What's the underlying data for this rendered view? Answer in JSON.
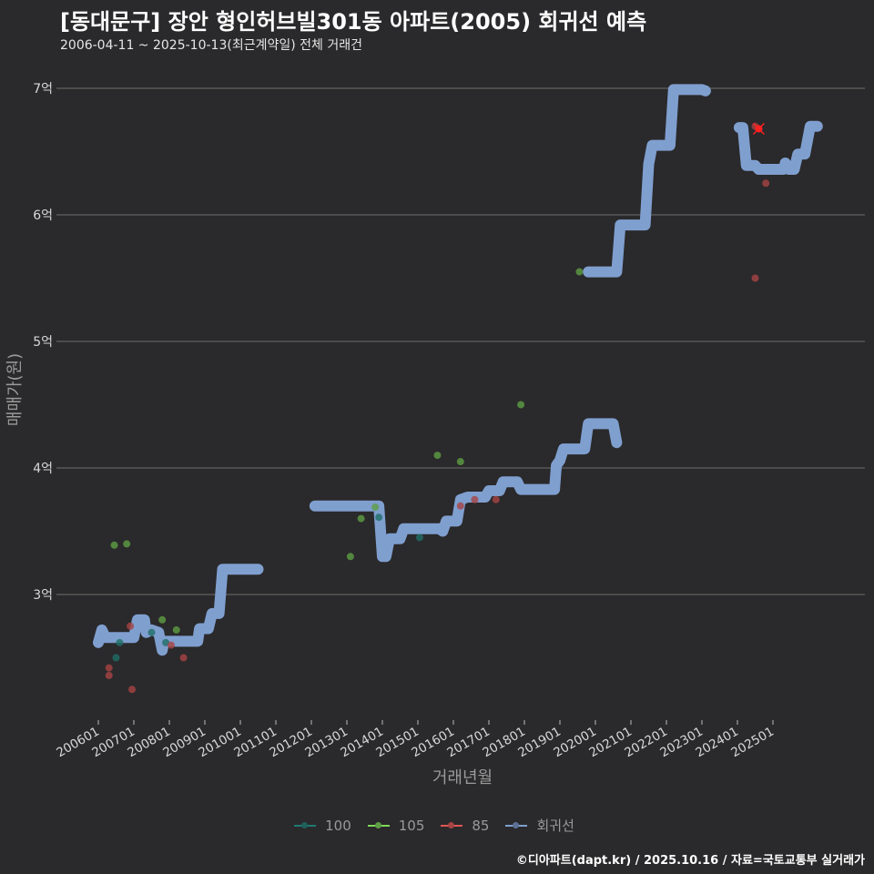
{
  "header": {
    "title": "[동대문구] 장안 형인허브빌301동 아파트(2005) 회귀선 예측",
    "subtitle": "2006-04-11 ~ 2025-10-13(최근계약일) 전체 거래건"
  },
  "caption": "©디아파트(dapt.kr) / 2025.10.16 / 자료=국토교통부 실거래가",
  "colors": {
    "background": "#2a292b",
    "grid": "#6e6e6e",
    "s100": "#1f7a72",
    "s105": "#7ed957",
    "s85": "#e05555",
    "regression": "#7f9fcf",
    "latest_marker": "#ff2020"
  },
  "chart_data": {
    "type": "scatter",
    "title": "[동대문구] 장안 형인허브빌301동 아파트(2005) 회귀선 예측",
    "subtitle": "2006-04-11 ~ 2025-10-13(최근계약일) 전체 거래건",
    "xlabel": "거래년월",
    "ylabel": "매매가(원)",
    "x_ticks": [
      "200601",
      "200701",
      "200801",
      "200901",
      "201001",
      "201101",
      "201201",
      "201301",
      "201401",
      "201501",
      "201601",
      "201701",
      "201801",
      "201901",
      "202001",
      "202101",
      "202201",
      "202301",
      "202401",
      "202501"
    ],
    "y_ticks": [
      "3억",
      "4억",
      "5억",
      "6억",
      "7억"
    ],
    "y_tick_values": [
      3,
      4,
      5,
      6,
      7
    ],
    "ylim": [
      2.0,
      7.1
    ],
    "xlim": [
      2005.3,
      2027.6
    ],
    "grid": "horizontal",
    "legend_position": "bottom",
    "legend": [
      "100",
      "105",
      "85",
      "회귀선"
    ],
    "series": [
      {
        "name": "100",
        "points": [
          [
            2006.5,
            2.5
          ],
          [
            2006.6,
            2.62
          ],
          [
            2007.5,
            2.7
          ],
          [
            2007.9,
            2.62
          ],
          [
            2013.9,
            3.61
          ],
          [
            2015.05,
            3.45
          ]
        ]
      },
      {
        "name": "105",
        "points": [
          [
            2006.45,
            3.39
          ],
          [
            2006.8,
            3.4
          ],
          [
            2007.8,
            2.8
          ],
          [
            2008.2,
            2.72
          ],
          [
            2013.1,
            3.3
          ],
          [
            2013.4,
            3.6
          ],
          [
            2013.8,
            3.69
          ],
          [
            2015.55,
            4.1
          ],
          [
            2016.2,
            4.05
          ],
          [
            2017.9,
            4.5
          ],
          [
            2019.55,
            5.55
          ]
        ]
      },
      {
        "name": "85",
        "points": [
          [
            2006.3,
            2.42
          ],
          [
            2006.3,
            2.36
          ],
          [
            2006.9,
            2.75
          ],
          [
            2006.95,
            2.25
          ],
          [
            2008.05,
            2.6
          ],
          [
            2008.4,
            2.5
          ],
          [
            2016.2,
            3.7
          ],
          [
            2016.6,
            3.75
          ],
          [
            2017.2,
            3.75
          ],
          [
            2024.5,
            6.7
          ],
          [
            2024.8,
            6.25
          ],
          [
            2024.5,
            5.5
          ],
          [
            2024.6,
            6.68
          ]
        ]
      },
      {
        "name": "회귀선",
        "segments": [
          [
            [
              2006.0,
              2.62
            ],
            [
              2006.1,
              2.72
            ],
            [
              2006.2,
              2.66
            ],
            [
              2007.0,
              2.66
            ],
            [
              2007.1,
              2.8
            ],
            [
              2007.3,
              2.8
            ],
            [
              2007.35,
              2.7
            ],
            [
              2007.5,
              2.72
            ],
            [
              2007.7,
              2.7
            ],
            [
              2007.8,
              2.56
            ],
            [
              2007.85,
              2.63
            ],
            [
              2008.8,
              2.63
            ],
            [
              2008.85,
              2.73
            ],
            [
              2009.1,
              2.73
            ],
            [
              2009.2,
              2.85
            ],
            [
              2009.4,
              2.85
            ],
            [
              2009.5,
              3.2
            ],
            [
              2010.5,
              3.2
            ]
          ],
          [
            [
              2012.1,
              3.7
            ],
            [
              2013.9,
              3.7
            ],
            [
              2014.0,
              3.3
            ],
            [
              2014.1,
              3.3
            ],
            [
              2014.2,
              3.44
            ],
            [
              2014.5,
              3.44
            ],
            [
              2014.6,
              3.52
            ],
            [
              2015.6,
              3.52
            ],
            [
              2015.7,
              3.5
            ],
            [
              2015.8,
              3.58
            ],
            [
              2016.1,
              3.58
            ],
            [
              2016.2,
              3.75
            ],
            [
              2016.4,
              3.77
            ],
            [
              2016.9,
              3.77
            ],
            [
              2017.0,
              3.82
            ],
            [
              2017.3,
              3.82
            ],
            [
              2017.4,
              3.89
            ],
            [
              2017.8,
              3.89
            ],
            [
              2017.9,
              3.83
            ],
            [
              2018.7,
              3.83
            ],
            [
              2018.85,
              3.83
            ],
            [
              2018.9,
              4.02
            ],
            [
              2019.0,
              4.06
            ],
            [
              2019.1,
              4.15
            ],
            [
              2019.7,
              4.15
            ],
            [
              2019.8,
              4.35
            ],
            [
              2020.5,
              4.35
            ],
            [
              2020.6,
              4.2
            ]
          ]
        ],
        "note": "second-period segments continue"
      }
    ]
  },
  "legend": {
    "items": [
      {
        "label": "100",
        "color": "#1f7a72"
      },
      {
        "label": "105",
        "color": "#7ed957"
      },
      {
        "label": "85",
        "color": "#e05555"
      },
      {
        "label": "회귀선",
        "color": "#7f9fcf"
      }
    ]
  }
}
